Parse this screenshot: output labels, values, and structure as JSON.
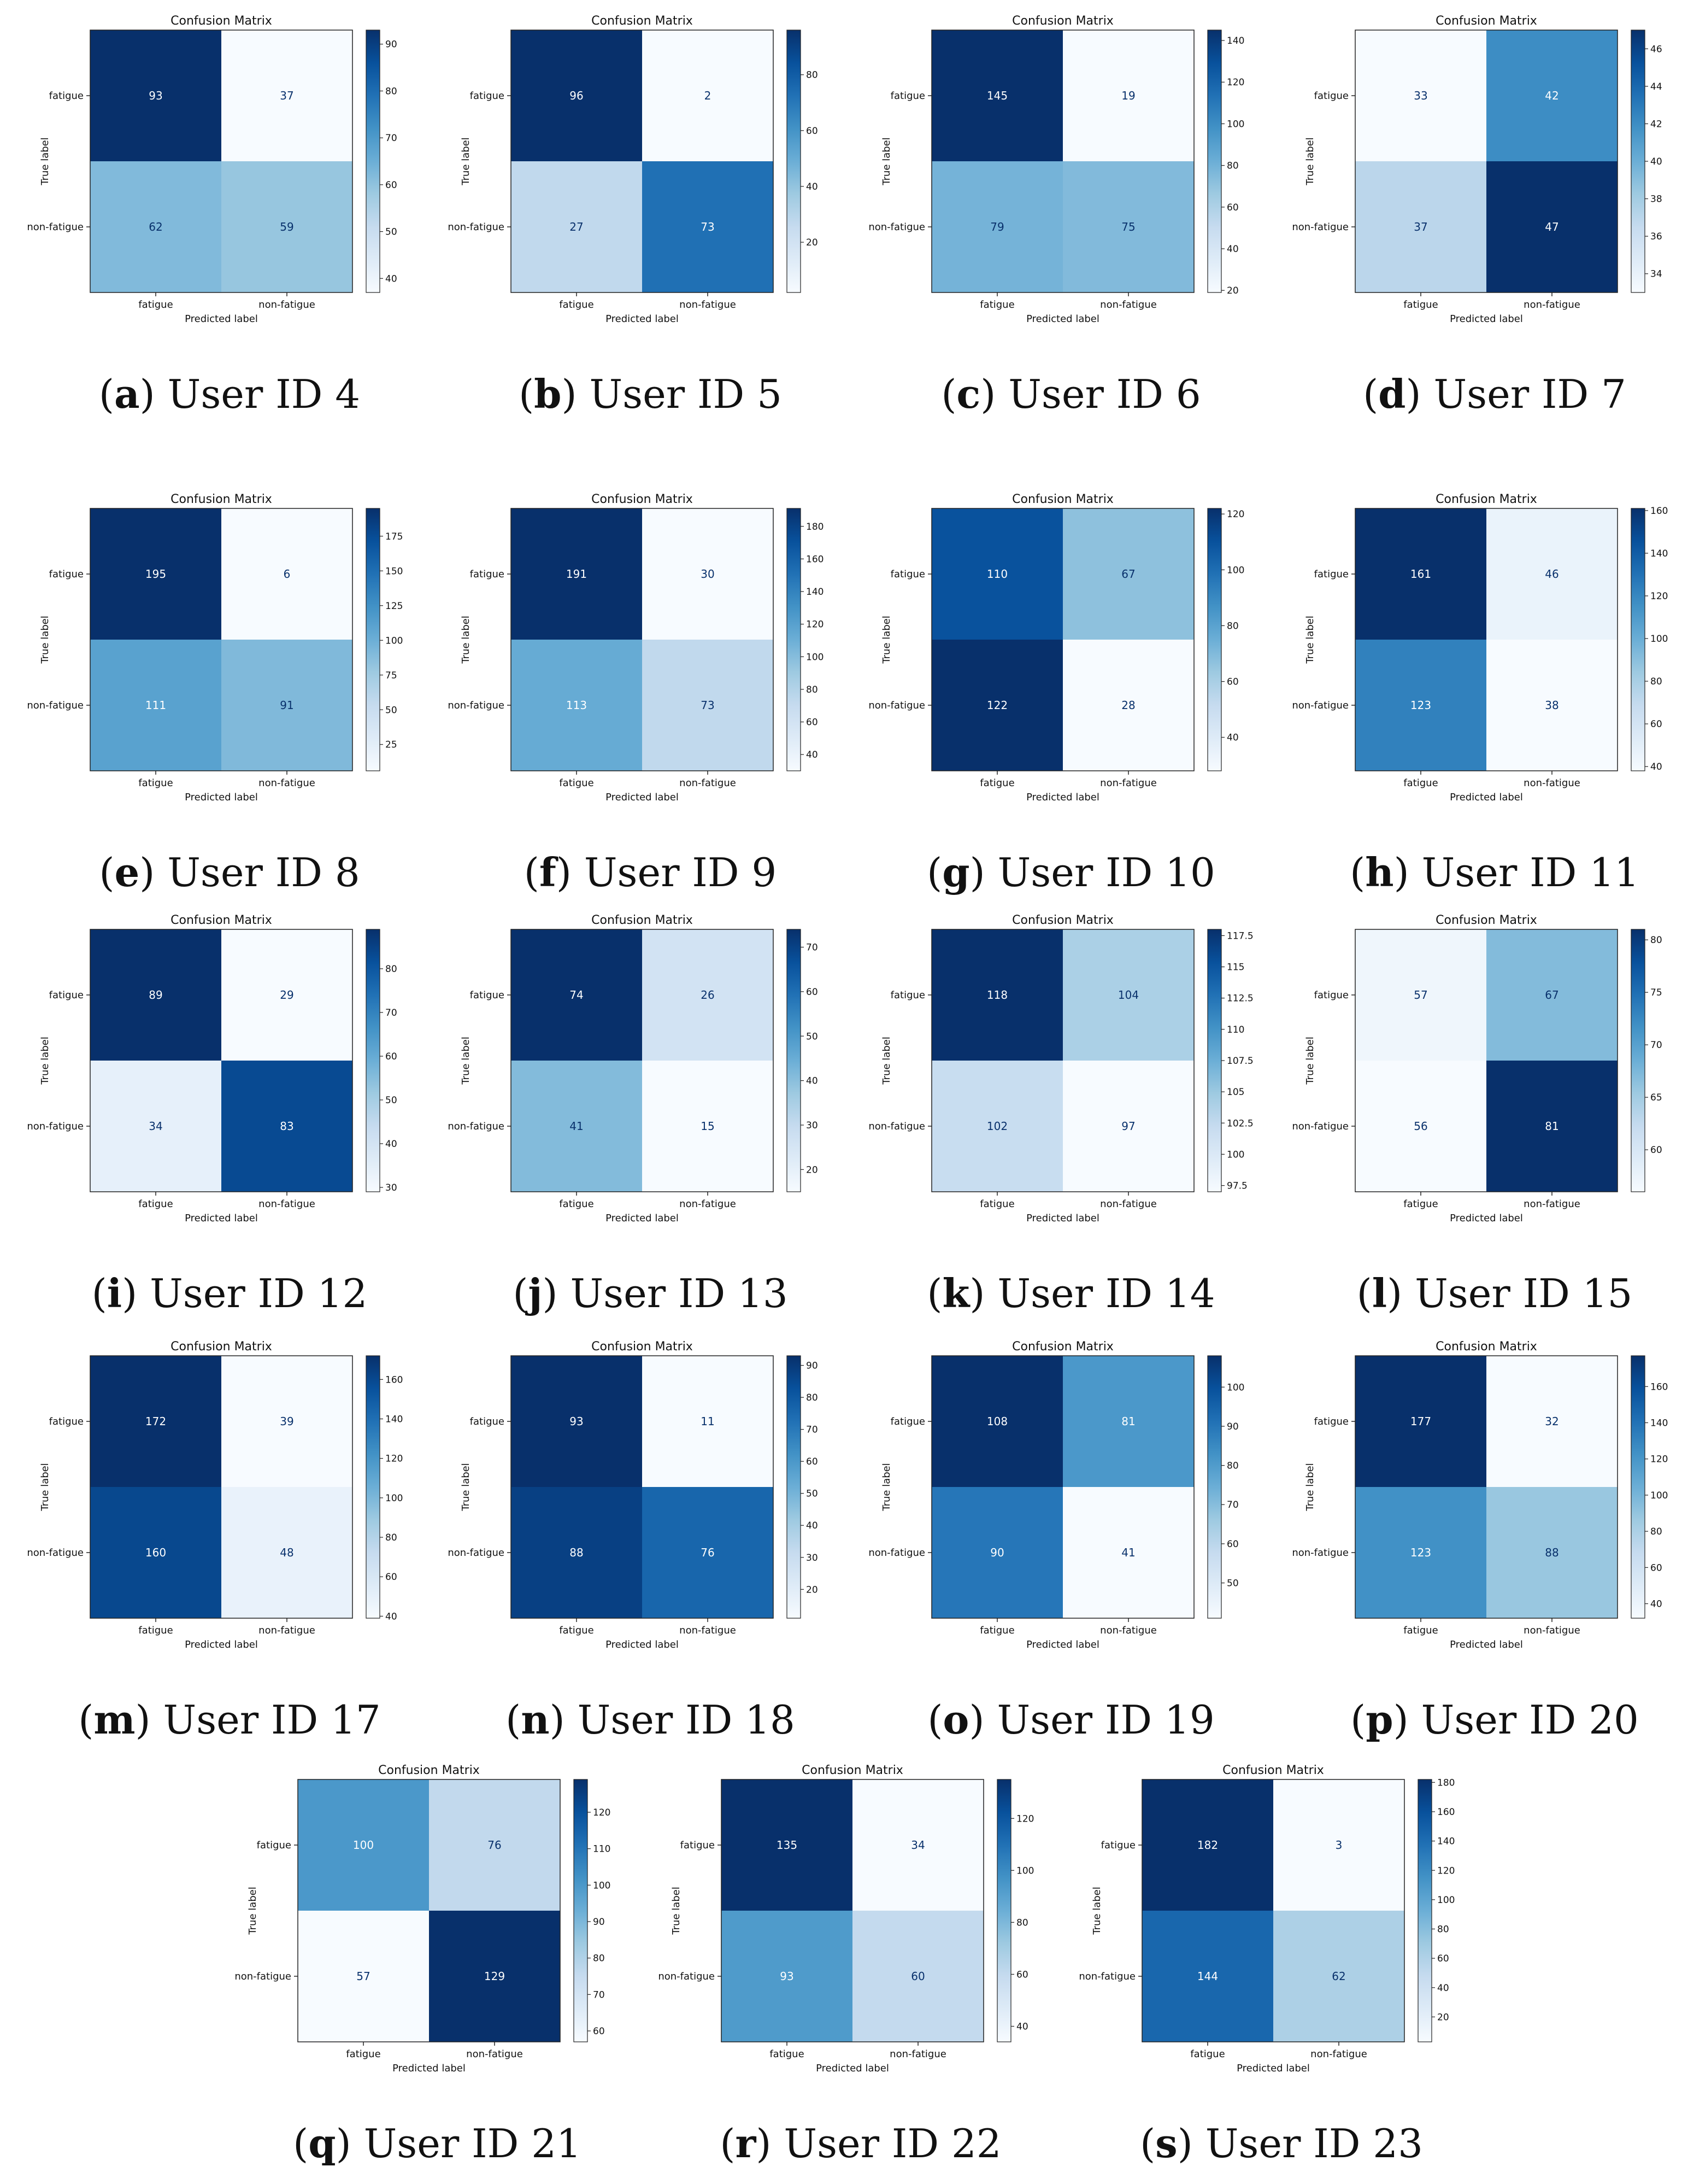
{
  "figure": {
    "captions": [
      {
        "letter": "a",
        "text": "User ID 4"
      },
      {
        "letter": "b",
        "text": "User ID 5"
      },
      {
        "letter": "c",
        "text": "User ID 6"
      },
      {
        "letter": "d",
        "text": "User ID 7"
      },
      {
        "letter": "e",
        "text": "User ID 8"
      },
      {
        "letter": "f",
        "text": "User ID 9"
      },
      {
        "letter": "g",
        "text": "User ID 10"
      },
      {
        "letter": "h",
        "text": "User ID 11"
      },
      {
        "letter": "i",
        "text": "User ID 12"
      },
      {
        "letter": "j",
        "text": "User ID 13"
      },
      {
        "letter": "k",
        "text": "User ID 14"
      },
      {
        "letter": "l",
        "text": "User ID 15"
      },
      {
        "letter": "m",
        "text": "User ID 17"
      },
      {
        "letter": "n",
        "text": "User ID 18"
      },
      {
        "letter": "o",
        "text": "User ID 19"
      },
      {
        "letter": "p",
        "text": "User ID 20"
      },
      {
        "letter": "q",
        "text": "User ID 21"
      },
      {
        "letter": "r",
        "text": "User ID 22"
      },
      {
        "letter": "s",
        "text": "User ID 23"
      }
    ],
    "colormap": {
      "low": "#f7fbff",
      "mid": "#6baed6",
      "high": "#08306b"
    }
  },
  "chart_data": [
    {
      "type": "heatmap",
      "title": "Confusion Matrix",
      "xlabel": "Predicted label",
      "ylabel": "True label",
      "categories": [
        "fatigue",
        "non-fatigue"
      ],
      "values": [
        [
          93,
          37
        ],
        [
          62,
          59
        ]
      ],
      "colorbar_range": [
        37,
        93
      ],
      "colorbar_ticks": [
        40,
        50,
        60,
        70,
        80,
        90
      ]
    },
    {
      "type": "heatmap",
      "title": "Confusion Matrix",
      "xlabel": "Predicted label",
      "ylabel": "True label",
      "categories": [
        "fatigue",
        "non-fatigue"
      ],
      "values": [
        [
          96,
          2
        ],
        [
          27,
          73
        ]
      ],
      "colorbar_range": [
        2,
        96
      ],
      "colorbar_ticks": [
        20,
        40,
        60,
        80
      ]
    },
    {
      "type": "heatmap",
      "title": "Confusion Matrix",
      "xlabel": "Predicted label",
      "ylabel": "True label",
      "categories": [
        "fatigue",
        "non-fatigue"
      ],
      "values": [
        [
          145,
          19
        ],
        [
          79,
          75
        ]
      ],
      "colorbar_range": [
        19,
        145
      ],
      "colorbar_ticks": [
        20,
        40,
        60,
        80,
        100,
        120,
        140
      ]
    },
    {
      "type": "heatmap",
      "title": "Confusion Matrix",
      "xlabel": "Predicted label",
      "ylabel": "True label",
      "categories": [
        "fatigue",
        "non-fatigue"
      ],
      "values": [
        [
          33,
          42
        ],
        [
          37,
          47
        ]
      ],
      "colorbar_range": [
        33,
        47
      ],
      "colorbar_ticks": [
        34,
        36,
        38,
        40,
        42,
        44,
        46
      ]
    },
    {
      "type": "heatmap",
      "title": "Confusion Matrix",
      "xlabel": "Predicted label",
      "ylabel": "True label",
      "categories": [
        "fatigue",
        "non-fatigue"
      ],
      "values": [
        [
          195,
          6
        ],
        [
          111,
          91
        ]
      ],
      "colorbar_range": [
        6,
        195
      ],
      "colorbar_ticks": [
        25,
        50,
        75,
        100,
        125,
        150,
        175
      ]
    },
    {
      "type": "heatmap",
      "title": "Confusion Matrix",
      "xlabel": "Predicted label",
      "ylabel": "True label",
      "categories": [
        "fatigue",
        "non-fatigue"
      ],
      "values": [
        [
          191,
          30
        ],
        [
          113,
          73
        ]
      ],
      "colorbar_range": [
        30,
        191
      ],
      "colorbar_ticks": [
        40,
        60,
        80,
        100,
        120,
        140,
        160,
        180
      ]
    },
    {
      "type": "heatmap",
      "title": "Confusion Matrix",
      "xlabel": "Predicted label",
      "ylabel": "True label",
      "categories": [
        "fatigue",
        "non-fatigue"
      ],
      "values": [
        [
          110,
          67
        ],
        [
          122,
          28
        ]
      ],
      "colorbar_range": [
        28,
        122
      ],
      "colorbar_ticks": [
        40,
        60,
        80,
        100,
        120
      ]
    },
    {
      "type": "heatmap",
      "title": "Confusion Matrix",
      "xlabel": "Predicted label",
      "ylabel": "True label",
      "categories": [
        "fatigue",
        "non-fatigue"
      ],
      "values": [
        [
          161,
          46
        ],
        [
          123,
          38
        ]
      ],
      "colorbar_range": [
        38,
        161
      ],
      "colorbar_ticks": [
        40,
        60,
        80,
        100,
        120,
        140,
        160
      ]
    },
    {
      "type": "heatmap",
      "title": "Confusion Matrix",
      "xlabel": "Predicted label",
      "ylabel": "True label",
      "categories": [
        "fatigue",
        "non-fatigue"
      ],
      "values": [
        [
          89,
          29
        ],
        [
          34,
          83
        ]
      ],
      "colorbar_range": [
        29,
        89
      ],
      "colorbar_ticks": [
        30,
        40,
        50,
        60,
        70,
        80
      ]
    },
    {
      "type": "heatmap",
      "title": "Confusion Matrix",
      "xlabel": "Predicted label",
      "ylabel": "True label",
      "categories": [
        "fatigue",
        "non-fatigue"
      ],
      "values": [
        [
          74,
          26
        ],
        [
          41,
          15
        ]
      ],
      "colorbar_range": [
        15,
        74
      ],
      "colorbar_ticks": [
        20,
        30,
        40,
        50,
        60,
        70
      ]
    },
    {
      "type": "heatmap",
      "title": "Confusion Matrix",
      "xlabel": "Predicted label",
      "ylabel": "True label",
      "categories": [
        "fatigue",
        "non-fatigue"
      ],
      "values": [
        [
          118,
          104
        ],
        [
          102,
          97
        ]
      ],
      "colorbar_range": [
        97,
        118
      ],
      "colorbar_ticks": [
        97.5,
        100.0,
        102.5,
        105.0,
        107.5,
        110.0,
        112.5,
        115.0,
        117.5
      ]
    },
    {
      "type": "heatmap",
      "title": "Confusion Matrix",
      "xlabel": "Predicted label",
      "ylabel": "True label",
      "categories": [
        "fatigue",
        "non-fatigue"
      ],
      "values": [
        [
          57,
          67
        ],
        [
          56,
          81
        ]
      ],
      "colorbar_range": [
        56,
        81
      ],
      "colorbar_ticks": [
        60,
        65,
        70,
        75,
        80
      ]
    },
    {
      "type": "heatmap",
      "title": "Confusion Matrix",
      "xlabel": "Predicted label",
      "ylabel": "True label",
      "categories": [
        "fatigue",
        "non-fatigue"
      ],
      "values": [
        [
          172,
          39
        ],
        [
          160,
          48
        ]
      ],
      "colorbar_range": [
        39,
        172
      ],
      "colorbar_ticks": [
        40,
        60,
        80,
        100,
        120,
        140,
        160
      ]
    },
    {
      "type": "heatmap",
      "title": "Confusion Matrix",
      "xlabel": "Predicted label",
      "ylabel": "True label",
      "categories": [
        "fatigue",
        "non-fatigue"
      ],
      "values": [
        [
          93,
          11
        ],
        [
          88,
          76
        ]
      ],
      "colorbar_range": [
        11,
        93
      ],
      "colorbar_ticks": [
        20,
        30,
        40,
        50,
        60,
        70,
        80,
        90
      ]
    },
    {
      "type": "heatmap",
      "title": "Confusion Matrix",
      "xlabel": "Predicted label",
      "ylabel": "True label",
      "categories": [
        "fatigue",
        "non-fatigue"
      ],
      "values": [
        [
          108,
          81
        ],
        [
          90,
          41
        ]
      ],
      "colorbar_range": [
        41,
        108
      ],
      "colorbar_ticks": [
        50,
        60,
        70,
        80,
        90,
        100
      ]
    },
    {
      "type": "heatmap",
      "title": "Confusion Matrix",
      "xlabel": "Predicted label",
      "ylabel": "True label",
      "categories": [
        "fatigue",
        "non-fatigue"
      ],
      "values": [
        [
          177,
          32
        ],
        [
          123,
          88
        ]
      ],
      "colorbar_range": [
        32,
        177
      ],
      "colorbar_ticks": [
        40,
        60,
        80,
        100,
        120,
        140,
        160
      ]
    },
    {
      "type": "heatmap",
      "title": "Confusion Matrix",
      "xlabel": "Predicted label",
      "ylabel": "True label",
      "categories": [
        "fatigue",
        "non-fatigue"
      ],
      "values": [
        [
          100,
          76
        ],
        [
          57,
          129
        ]
      ],
      "colorbar_range": [
        57,
        129
      ],
      "colorbar_ticks": [
        60,
        70,
        80,
        90,
        100,
        110,
        120
      ]
    },
    {
      "type": "heatmap",
      "title": "Confusion Matrix",
      "xlabel": "Predicted label",
      "ylabel": "True label",
      "categories": [
        "fatigue",
        "non-fatigue"
      ],
      "values": [
        [
          135,
          34
        ],
        [
          93,
          60
        ]
      ],
      "colorbar_range": [
        34,
        135
      ],
      "colorbar_ticks": [
        40,
        60,
        80,
        100,
        120
      ]
    },
    {
      "type": "heatmap",
      "title": "Confusion Matrix",
      "xlabel": "Predicted label",
      "ylabel": "True label",
      "categories": [
        "fatigue",
        "non-fatigue"
      ],
      "values": [
        [
          182,
          3
        ],
        [
          144,
          62
        ]
      ],
      "colorbar_range": [
        3,
        182
      ],
      "colorbar_ticks": [
        20,
        40,
        60,
        80,
        100,
        120,
        140,
        160,
        180
      ]
    }
  ]
}
